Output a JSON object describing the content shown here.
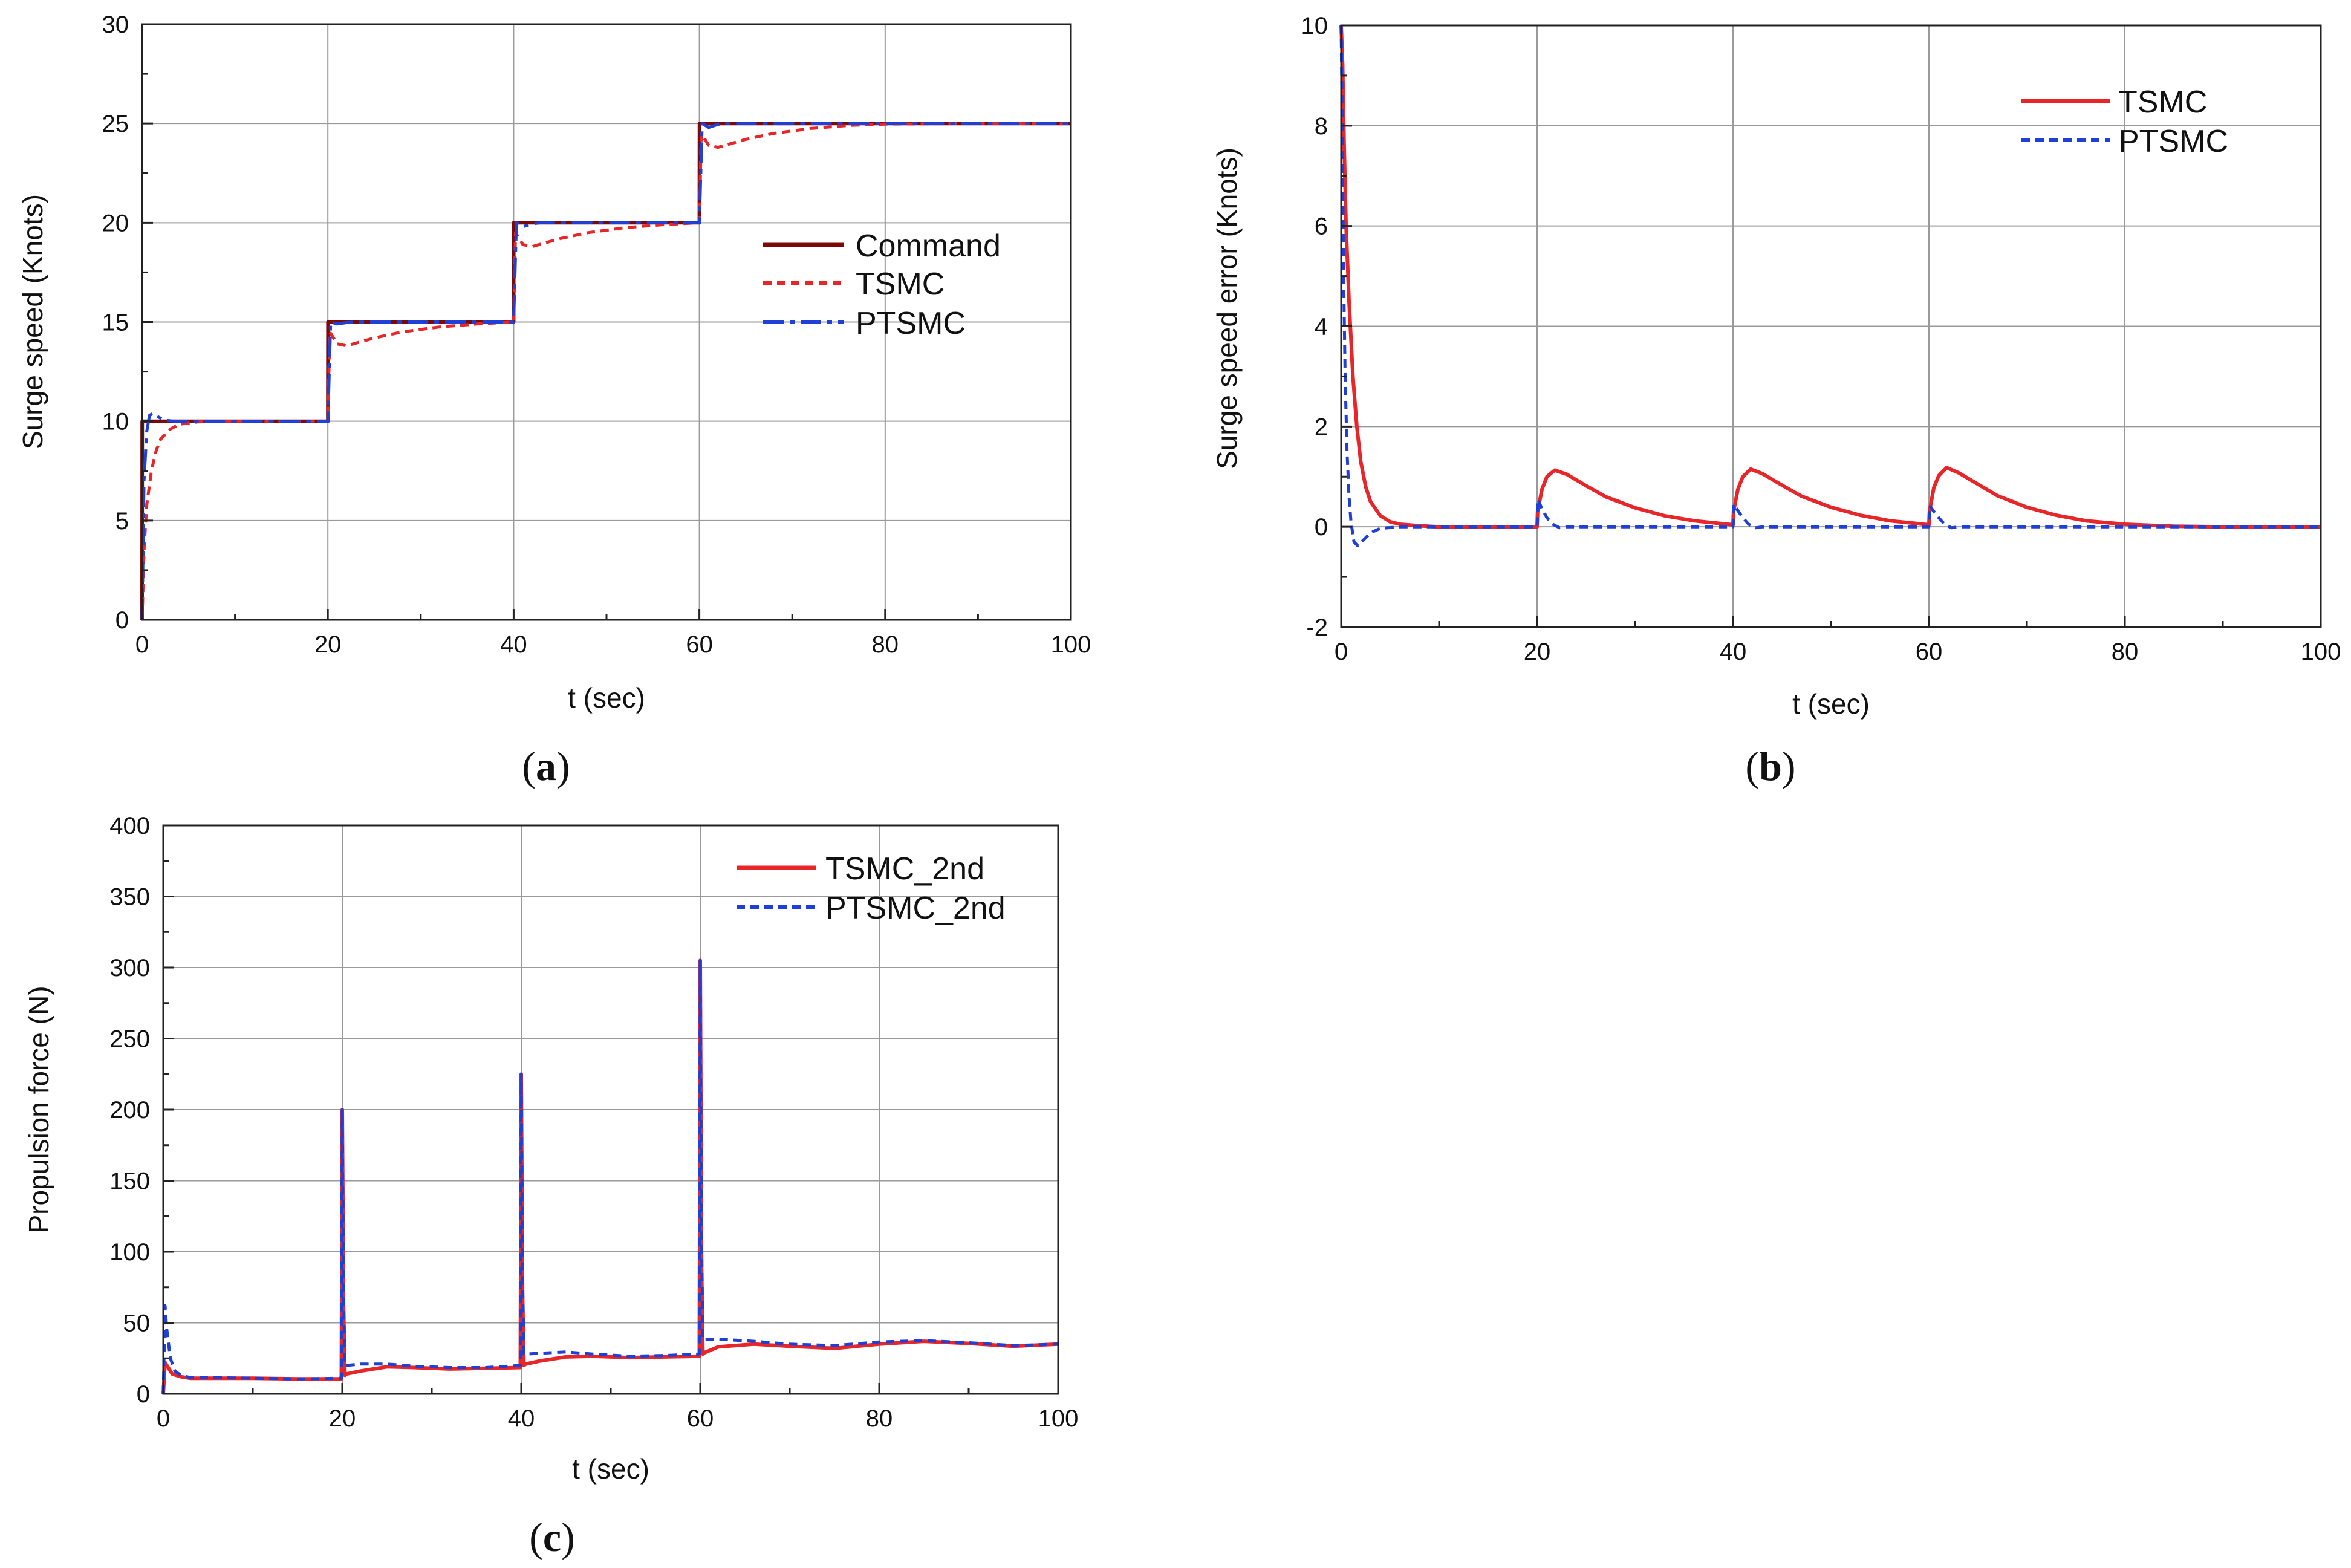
{
  "figure": {
    "captions": [
      {
        "open": "(",
        "letter": "a",
        "close": ")"
      },
      {
        "open": "(",
        "letter": "b",
        "close": ")"
      },
      {
        "open": "(",
        "letter": "c",
        "close": ")"
      }
    ]
  },
  "chart_data": [
    {
      "id": "a",
      "type": "line",
      "title": "",
      "xlabel": "t (sec)",
      "ylabel": "Surge speed (Knots)",
      "xlim": [
        0,
        100
      ],
      "ylim": [
        0,
        30
      ],
      "x_ticks": [
        0,
        20,
        40,
        60,
        80,
        100
      ],
      "x_tick_labels": [
        "0",
        "20",
        "40",
        "60",
        "80",
        "100"
      ],
      "y_ticks": [
        0,
        5,
        10,
        15,
        20,
        25,
        30
      ],
      "y_tick_labels": [
        "0",
        "5",
        "10",
        "15",
        "20",
        "25",
        "30"
      ],
      "grid": true,
      "legend_position": "center-right",
      "series": [
        {
          "name": "Command",
          "color": "#7a0a0a",
          "style": "solid",
          "x": [
            0,
            0.01,
            20,
            20.01,
            40,
            40.01,
            60,
            60.01,
            100
          ],
          "y": [
            0,
            10,
            10,
            15,
            15,
            20,
            20,
            25,
            25
          ]
        },
        {
          "name": "TSMC",
          "color": "#e8262a",
          "style": "dashed",
          "x": [
            0,
            0.2,
            0.5,
            1,
            1.5,
            2,
            3,
            4,
            6,
            8,
            10,
            20,
            20.2,
            21,
            22,
            25,
            28,
            32,
            36,
            40,
            40.2,
            41,
            42,
            45,
            48,
            52,
            56,
            60,
            60.2,
            61,
            62,
            65,
            68,
            72,
            76,
            80,
            90,
            100
          ],
          "y": [
            0,
            3.5,
            5.8,
            7.5,
            8.5,
            9.1,
            9.6,
            9.85,
            9.97,
            10,
            10,
            10,
            14.5,
            13.9,
            13.8,
            14.2,
            14.5,
            14.75,
            14.9,
            15,
            19.5,
            18.9,
            18.8,
            19.2,
            19.5,
            19.75,
            19.9,
            20,
            24.5,
            23.9,
            23.8,
            24.2,
            24.5,
            24.75,
            24.9,
            24.97,
            25,
            25
          ]
        },
        {
          "name": "PTSMC",
          "color": "#1f3fd6",
          "style": "dashdot",
          "x": [
            0,
            0.2,
            0.5,
            0.8,
            1.2,
            1.8,
            2.5,
            3.5,
            5,
            20,
            20.3,
            21,
            22,
            23,
            40,
            40.3,
            41,
            42,
            43,
            60,
            60.3,
            61,
            62,
            63,
            100
          ],
          "y": [
            0,
            7,
            9.5,
            10.3,
            10.4,
            10.2,
            10.05,
            10,
            10,
            10,
            15,
            14.9,
            14.97,
            15,
            15,
            20,
            19.8,
            19.95,
            20,
            20,
            25,
            24.8,
            24.95,
            25,
            25
          ]
        }
      ]
    },
    {
      "id": "b",
      "type": "line",
      "title": "",
      "xlabel": "t (sec)",
      "ylabel": "Surge speed error (Knots)",
      "xlim": [
        0,
        100
      ],
      "ylim": [
        -2,
        10
      ],
      "x_ticks": [
        0,
        20,
        40,
        60,
        80,
        100
      ],
      "x_tick_labels": [
        "0",
        "20",
        "40",
        "60",
        "80",
        "100"
      ],
      "y_ticks": [
        -2,
        0,
        2,
        4,
        6,
        8,
        10
      ],
      "y_tick_labels": [
        "-2",
        "0",
        "2",
        "4",
        "6",
        "8",
        "10"
      ],
      "grid": true,
      "legend_position": "top-right",
      "series": [
        {
          "name": "TSMC",
          "color": "#e8262a",
          "style": "solid",
          "x": [
            0,
            0.15,
            0.3,
            0.5,
            0.8,
            1.2,
            1.6,
            2,
            2.5,
            3,
            4,
            5,
            6,
            8,
            10,
            20,
            20.05,
            20.5,
            21,
            21.8,
            23,
            25,
            27,
            30,
            33,
            36,
            40,
            40.05,
            40.5,
            41,
            41.8,
            43,
            45,
            47,
            50,
            53,
            56,
            60,
            60.05,
            60.5,
            61,
            61.8,
            63,
            65,
            67,
            70,
            73,
            76,
            80,
            85,
            90,
            100
          ],
          "y": [
            10,
            9.2,
            7.6,
            6,
            4.5,
            3,
            2,
            1.3,
            0.8,
            0.5,
            0.22,
            0.1,
            0.05,
            0.02,
            0,
            0,
            0.3,
            0.75,
            1,
            1.13,
            1.05,
            0.82,
            0.6,
            0.38,
            0.22,
            0.12,
            0.04,
            0.3,
            0.75,
            1,
            1.15,
            1.06,
            0.83,
            0.61,
            0.39,
            0.23,
            0.12,
            0.04,
            0.3,
            0.78,
            1.02,
            1.18,
            1.08,
            0.85,
            0.62,
            0.39,
            0.23,
            0.12,
            0.05,
            0.01,
            0,
            0
          ]
        },
        {
          "name": "PTSMC",
          "color": "#1f3fd6",
          "style": "dashed",
          "x": [
            0,
            0.1,
            0.25,
            0.4,
            0.6,
            0.8,
            1,
            1.3,
            1.7,
            2.2,
            3,
            4,
            6,
            20,
            20.1,
            20.4,
            21,
            21.6,
            22.3,
            23,
            40,
            40.1,
            40.4,
            41,
            41.6,
            42.3,
            43,
            60,
            60.1,
            60.4,
            61,
            61.6,
            62.3,
            63,
            100
          ],
          "y": [
            10,
            8,
            5,
            3,
            1.5,
            0.6,
            0.1,
            -0.3,
            -0.38,
            -0.28,
            -0.12,
            -0.03,
            0,
            0,
            0.55,
            0.4,
            0.18,
            0.05,
            -0.02,
            0,
            0,
            0.45,
            0.35,
            0.18,
            0.05,
            -0.02,
            0,
            0,
            0.42,
            0.33,
            0.18,
            0.05,
            -0.02,
            0,
            0
          ]
        }
      ]
    },
    {
      "id": "c",
      "type": "line",
      "title": "",
      "xlabel": "t (sec)",
      "ylabel": "Propulsion force (N)",
      "xlim": [
        0,
        100
      ],
      "ylim": [
        0,
        400
      ],
      "x_ticks": [
        0,
        20,
        40,
        60,
        80,
        100
      ],
      "x_tick_labels": [
        "0",
        "20",
        "40",
        "60",
        "80",
        "100"
      ],
      "y_ticks": [
        0,
        50,
        100,
        150,
        200,
        250,
        300,
        350,
        400
      ],
      "y_tick_labels": [
        "0",
        "50",
        "100",
        "150",
        "200",
        "250",
        "300",
        "350",
        "400"
      ],
      "grid": true,
      "legend_position": "top-right",
      "series": [
        {
          "name": "TSMC_2nd",
          "color": "#e8262a",
          "style": "solid",
          "x": [
            0,
            0.2,
            0.6,
            1,
            2,
            3,
            5,
            10,
            15,
            19.9,
            20,
            20.15,
            20.3,
            20.5,
            22,
            25,
            28,
            32,
            36,
            39.9,
            40,
            40.15,
            40.3,
            40.5,
            42,
            45,
            48,
            52,
            56,
            59.9,
            60,
            60.15,
            60.3,
            60.5,
            62,
            66,
            70,
            75,
            80,
            85,
            90,
            95,
            100
          ],
          "y": [
            0,
            22,
            18,
            14,
            12,
            11,
            11,
            11,
            10.5,
            10.5,
            200,
            60,
            13,
            14,
            16,
            19,
            18.5,
            17.5,
            18,
            18.5,
            225,
            70,
            20,
            21,
            23,
            26,
            26.5,
            25.5,
            26,
            26.5,
            305,
            90,
            28,
            29,
            33,
            35,
            33.5,
            32,
            35,
            37,
            35.5,
            33.5,
            35
          ]
        },
        {
          "name": "PTSMC_2nd",
          "color": "#1f3fd6",
          "style": "dashed",
          "x": [
            0,
            0.2,
            0.4,
            0.8,
            1.3,
            2,
            3,
            5,
            10,
            15,
            19.9,
            20,
            20.15,
            20.3,
            20.5,
            22,
            25,
            28,
            32,
            36,
            39.9,
            40,
            40.15,
            40.3,
            40.5,
            42,
            45,
            48,
            52,
            56,
            59.9,
            60,
            60.15,
            60.3,
            60.5,
            62,
            66,
            70,
            75,
            80,
            85,
            90,
            95,
            100
          ],
          "y": [
            0,
            62,
            45,
            25,
            16,
            13,
            11.5,
            11.5,
            11,
            10.5,
            11,
            200,
            70,
            20,
            20,
            21,
            21,
            19.5,
            18.5,
            18.5,
            20,
            225,
            80,
            28,
            28,
            28.5,
            29.5,
            28,
            26.5,
            27,
            28,
            305,
            110,
            38,
            38,
            38.5,
            37,
            35,
            34,
            36.5,
            37.5,
            36,
            34,
            35
          ]
        }
      ]
    }
  ]
}
